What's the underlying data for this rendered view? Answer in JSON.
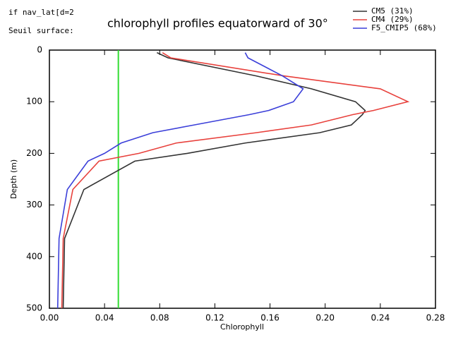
{
  "chart_data": {
    "type": "line",
    "title": "chlorophyll profiles equatorward of 30°",
    "annotations": [
      "if nav_lat[d=2",
      "Seuil surface:"
    ],
    "xlabel": "Chlorophyll",
    "ylabel": "Depth (m)",
    "depth": [
      5,
      15,
      50,
      75,
      100,
      117,
      125,
      145,
      160,
      180,
      200,
      215,
      270,
      365,
      500
    ],
    "series": [
      {
        "name": "CM5 (31%)",
        "color": "#333333",
        "values": [
          0.078,
          0.086,
          0.15,
          0.19,
          0.222,
          0.229,
          0.227,
          0.219,
          0.196,
          0.142,
          0.1,
          0.062,
          0.025,
          0.011,
          0.01
        ]
      },
      {
        "name": "CM4 (29%)",
        "color": "#e8413c",
        "values": [
          0.082,
          0.088,
          0.17,
          0.24,
          0.26,
          0.235,
          0.22,
          0.19,
          0.15,
          0.092,
          0.065,
          0.036,
          0.017,
          0.01,
          0.009
        ]
      },
      {
        "name": "F5_CMIP5 (68%)",
        "color": "#3b3fd9",
        "values": [
          0.142,
          0.144,
          0.169,
          0.184,
          0.177,
          0.159,
          0.145,
          0.105,
          0.075,
          0.052,
          0.04,
          0.028,
          0.013,
          0.007,
          0.006
        ]
      }
    ],
    "reference_x": 0.05,
    "reference_color": "#33dd33",
    "xlim": [
      0,
      0.28
    ],
    "xticks": [
      {
        "value": 0,
        "label": "0.00"
      },
      {
        "value": 0.04,
        "label": "0.04"
      },
      {
        "value": 0.08,
        "label": "0.08"
      },
      {
        "value": 0.12,
        "label": "0.12"
      },
      {
        "value": 0.16,
        "label": "0.16"
      },
      {
        "value": 0.2,
        "label": "0.20"
      },
      {
        "value": 0.24,
        "label": "0.24"
      },
      {
        "value": 0.28,
        "label": "0.28"
      }
    ],
    "ylim": [
      0,
      500
    ],
    "yticks": [
      0,
      100,
      200,
      300,
      400,
      500
    ],
    "y_inverted": true
  }
}
